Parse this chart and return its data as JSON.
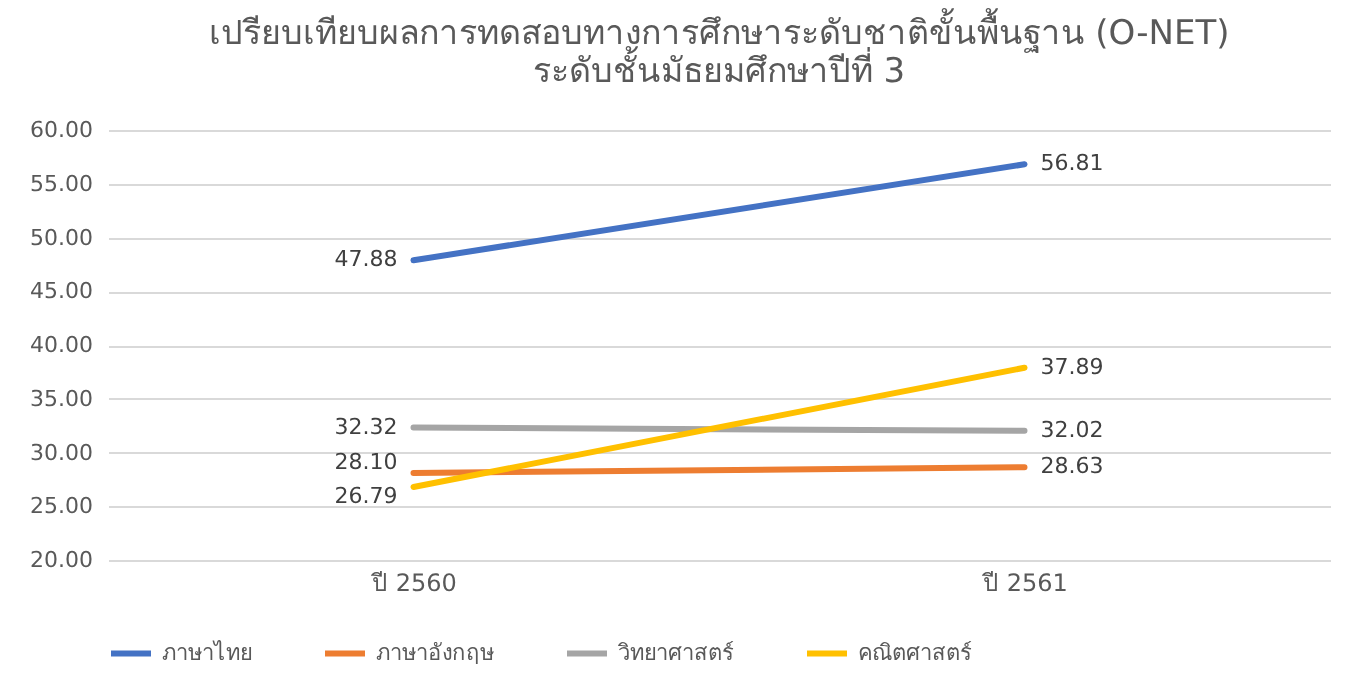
{
  "chart_data": {
    "type": "line",
    "title": "เปรียบเทียบผลการทดสอบทางการศึกษาระดับชาติขั้นพื้นฐาน (O-NET)\nระดับชั้นมัธยมศึกษาปีที่ 3",
    "categories": [
      "ปี 2560",
      "ปี 2561"
    ],
    "series": [
      {
        "name": "ภาษาไทย",
        "color": "#4472c4",
        "values": [
          47.88,
          56.81
        ],
        "value_labels": [
          "47.88",
          "56.81"
        ]
      },
      {
        "name": "ภาษาอังกฤษ",
        "color": "#ed7d31",
        "values": [
          28.1,
          28.63
        ],
        "value_labels": [
          "28.10",
          "28.63"
        ]
      },
      {
        "name": "วิทยาศาสตร์",
        "color": "#a5a5a5",
        "values": [
          32.32,
          32.02
        ],
        "value_labels": [
          "32.32",
          "32.02"
        ]
      },
      {
        "name": "คณิตศาสตร์",
        "color": "#ffc000",
        "values": [
          26.79,
          37.89
        ],
        "value_labels": [
          "26.79",
          "37.89"
        ]
      }
    ],
    "ylim": [
      20,
      60
    ],
    "yticks": [
      {
        "value": 20,
        "label": "20.00"
      },
      {
        "value": 25,
        "label": "25.00"
      },
      {
        "value": 30,
        "label": "30.00"
      },
      {
        "value": 35,
        "label": "35.00"
      },
      {
        "value": 40,
        "label": "40.00"
      },
      {
        "value": 45,
        "label": "45.00"
      },
      {
        "value": 50,
        "label": "50.00"
      },
      {
        "value": 55,
        "label": "55.00"
      },
      {
        "value": 60,
        "label": "60.00"
      }
    ],
    "grid": "y",
    "legend": "bottom",
    "marker": "none",
    "line_style": "solid"
  }
}
